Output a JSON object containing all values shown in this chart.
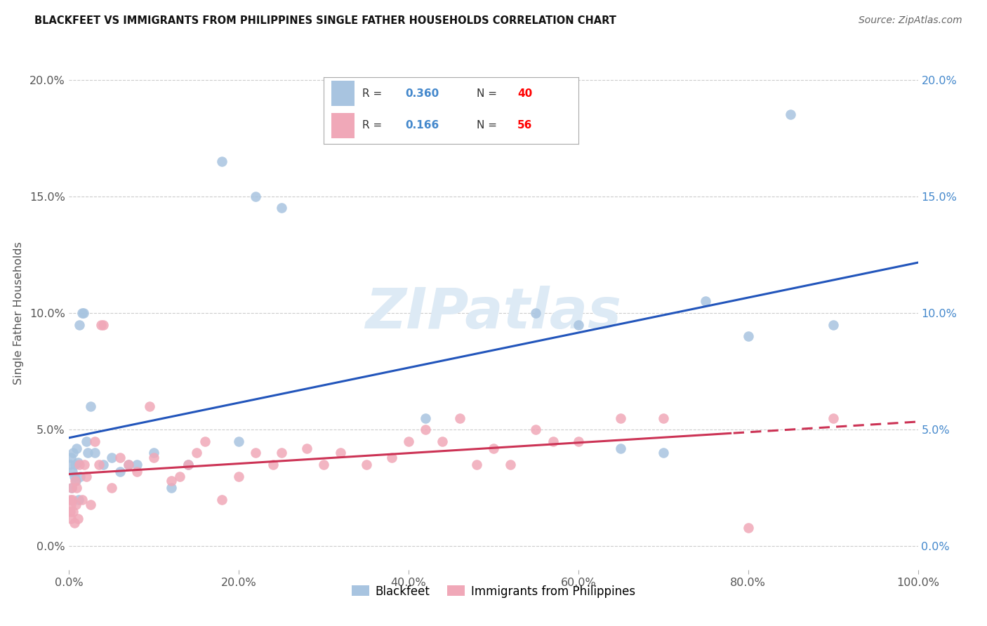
{
  "title": "BLACKFEET VS IMMIGRANTS FROM PHILIPPINES SINGLE FATHER HOUSEHOLDS CORRELATION CHART",
  "source": "Source: ZipAtlas.com",
  "ylabel_label": "Single Father Households",
  "watermark_text": "ZIPatlas",
  "blue_scatter_color": "#a8c4e0",
  "pink_scatter_color": "#f0a8b8",
  "blue_line_color": "#2255bb",
  "pink_line_color": "#cc3355",
  "tick_color_blue": "#4488cc",
  "tick_color_gray": "#555555",
  "grid_color": "#cccccc",
  "background_color": "#ffffff",
  "R_blue": "0.360",
  "N_blue": "40",
  "R_pink": "0.166",
  "N_pink": "56",
  "blackfeet_x": [
    0.1,
    0.2,
    0.3,
    0.4,
    0.5,
    0.6,
    0.7,
    0.8,
    0.9,
    1.0,
    1.1,
    1.2,
    1.3,
    1.5,
    1.7,
    2.0,
    2.2,
    2.5,
    3.0,
    4.0,
    5.0,
    6.0,
    7.0,
    8.0,
    10.0,
    12.0,
    14.0,
    18.0,
    20.0,
    22.0,
    25.0,
    42.0,
    55.0,
    60.0,
    65.0,
    70.0,
    75.0,
    80.0,
    85.0,
    90.0
  ],
  "blackfeet_y": [
    3.5,
    3.8,
    2.5,
    3.2,
    4.0,
    3.0,
    3.5,
    2.8,
    4.2,
    3.6,
    2.0,
    9.5,
    3.0,
    10.0,
    10.0,
    4.5,
    4.0,
    6.0,
    4.0,
    3.5,
    3.8,
    3.2,
    3.5,
    3.5,
    4.0,
    2.5,
    3.5,
    16.5,
    4.5,
    15.0,
    14.5,
    5.5,
    10.0,
    9.5,
    4.2,
    4.0,
    10.5,
    9.0,
    18.5,
    9.5
  ],
  "philippines_x": [
    0.1,
    0.15,
    0.2,
    0.25,
    0.3,
    0.4,
    0.5,
    0.6,
    0.7,
    0.8,
    0.9,
    1.0,
    1.2,
    1.5,
    1.8,
    2.0,
    2.5,
    3.0,
    3.5,
    4.0,
    5.0,
    6.0,
    7.0,
    8.0,
    10.0,
    12.0,
    13.0,
    14.0,
    15.0,
    16.0,
    18.0,
    20.0,
    22.0,
    24.0,
    25.0,
    28.0,
    30.0,
    32.0,
    35.0,
    38.0,
    40.0,
    42.0,
    44.0,
    46.0,
    48.0,
    50.0,
    52.0,
    55.0,
    57.0,
    60.0,
    65.0,
    70.0,
    80.0,
    90.0,
    9.5,
    3.8
  ],
  "philippines_y": [
    2.0,
    1.5,
    1.8,
    1.2,
    2.5,
    2.0,
    1.5,
    1.0,
    2.8,
    1.8,
    2.5,
    1.2,
    3.5,
    2.0,
    3.5,
    3.0,
    1.8,
    4.5,
    3.5,
    9.5,
    2.5,
    3.8,
    3.5,
    3.2,
    3.8,
    2.8,
    3.0,
    3.5,
    4.0,
    4.5,
    2.0,
    3.0,
    4.0,
    3.5,
    4.0,
    4.2,
    3.5,
    4.0,
    3.5,
    3.8,
    4.5,
    5.0,
    4.5,
    5.5,
    3.5,
    4.2,
    3.5,
    5.0,
    4.5,
    4.5,
    5.5,
    5.5,
    0.8,
    5.5,
    6.0,
    9.5
  ],
  "xlim": [
    0,
    100
  ],
  "ylim": [
    -1,
    21
  ],
  "x_ticks": [
    0,
    20,
    40,
    60,
    80,
    100
  ],
  "y_ticks": [
    0,
    5,
    10,
    15,
    20
  ]
}
